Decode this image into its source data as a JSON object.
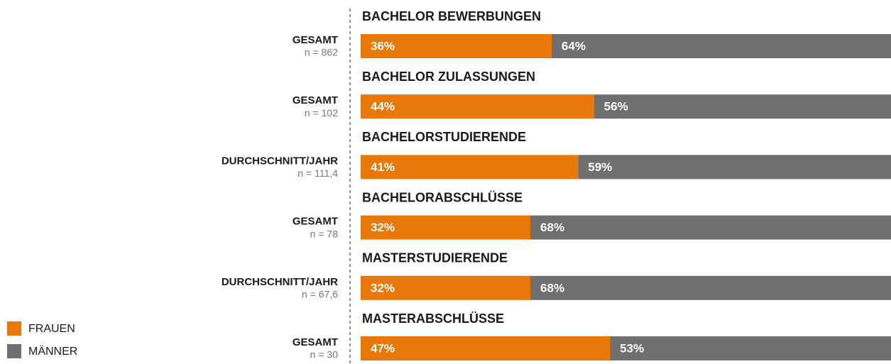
{
  "chart_data": {
    "type": "bar",
    "orientation": "horizontal",
    "stacked": true,
    "categories": [
      "BACHELOR BEWERBUNGEN",
      "BACHELOR ZULASSUNGEN",
      "BACHELORSTUDIERENDE",
      "BACHELORABSCHLÜSSE",
      "MASTERSTUDIERENDE",
      "MASTERABSCHLÜSSE"
    ],
    "row_labels": [
      "GESAMT",
      "GESAMT",
      "DURCHSCHNITT/JAHR",
      "GESAMT",
      "DURCHSCHNITT/JAHR",
      "GESAMT"
    ],
    "row_notes": [
      "n = 862",
      "n = 102",
      "n = 111,4",
      "n = 78",
      "n = 67,6",
      "n = 30"
    ],
    "series": [
      {
        "name": "FRAUEN",
        "color": "#e8780a",
        "values": [
          36,
          44,
          41,
          32,
          32,
          47
        ],
        "value_labels": [
          "36%",
          "44%",
          "41%",
          "32%",
          "32%",
          "47%"
        ]
      },
      {
        "name": "MÄNNER",
        "color": "#6f6f6f",
        "values": [
          64,
          56,
          59,
          68,
          68,
          53
        ],
        "value_labels": [
          "64%",
          "56%",
          "59%",
          "68%",
          "68%",
          "53%"
        ]
      }
    ],
    "xlim": [
      0,
      100
    ],
    "legend": "bottom-left"
  }
}
